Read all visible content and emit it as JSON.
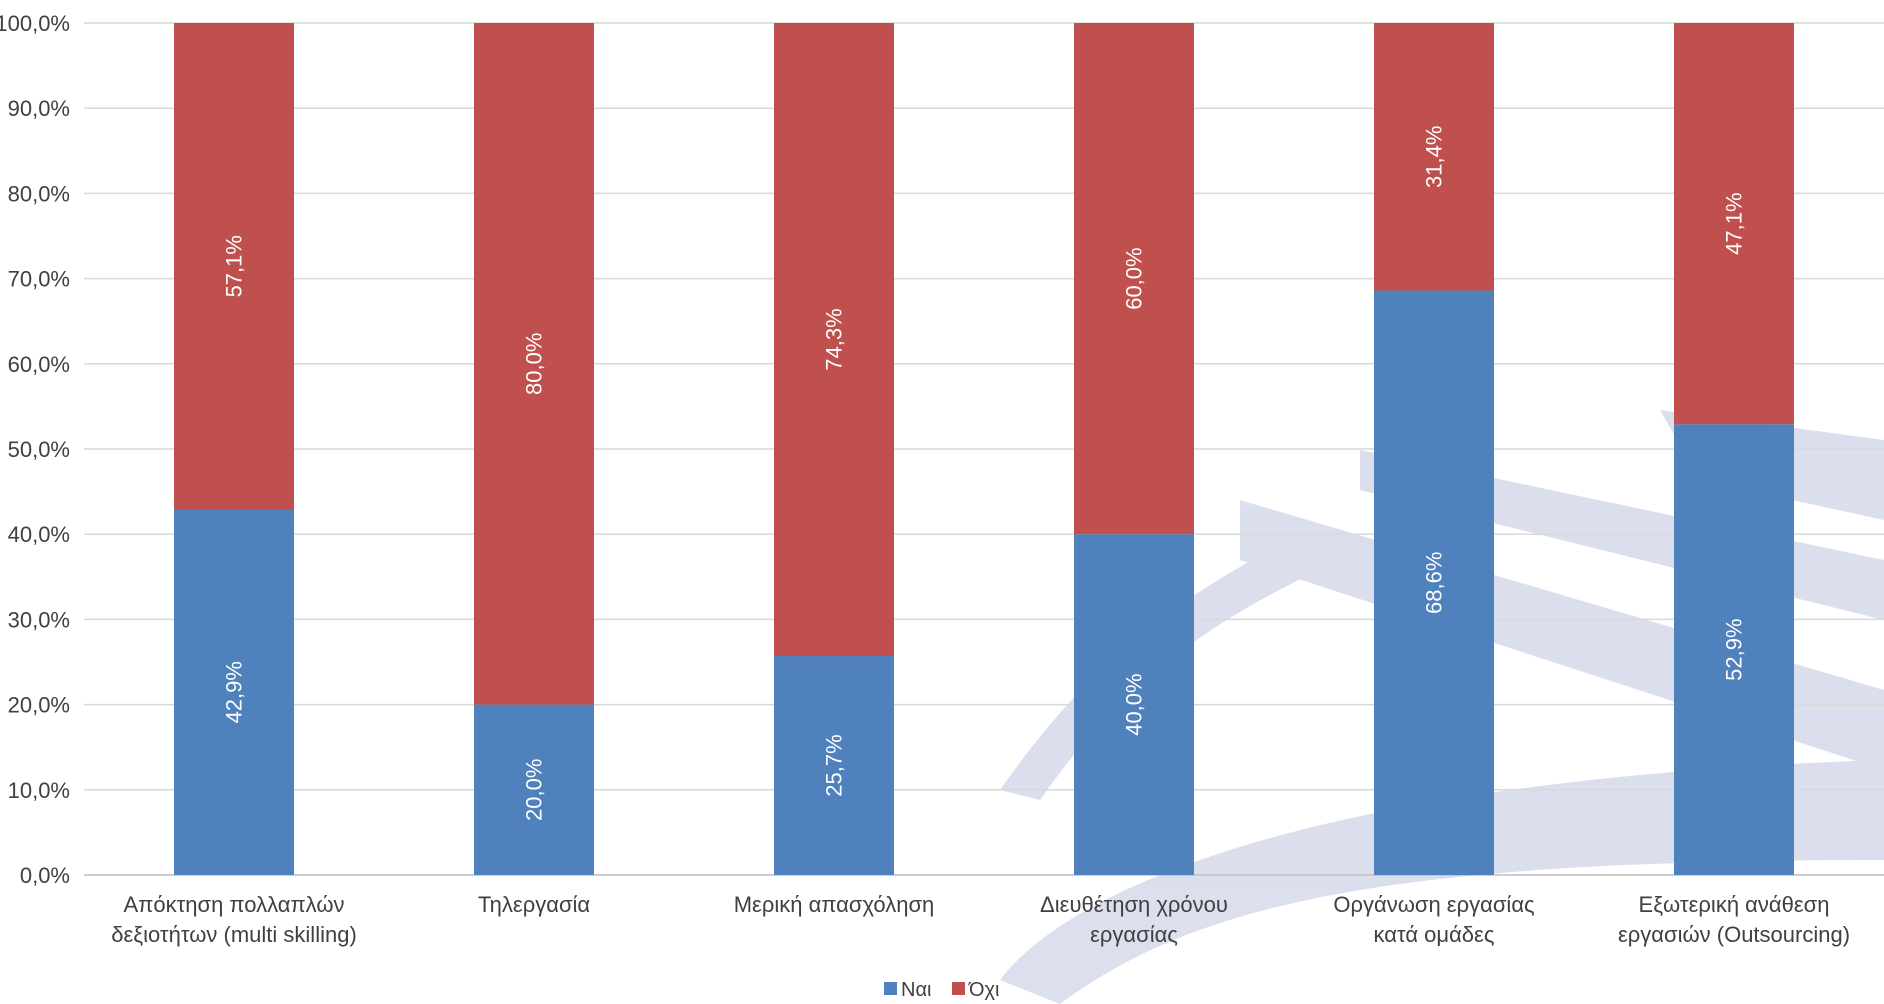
{
  "chart_data": {
    "type": "bar",
    "stacked": true,
    "categories": [
      [
        "Απόκτηση πολλαπλών",
        "δεξιοτήτων (multi skilling)"
      ],
      [
        "Τηλεργασία"
      ],
      [
        "Μερική απασχόληση"
      ],
      [
        "Διευθέτηση χρόνου",
        "εργασίας"
      ],
      [
        "Οργάνωση εργασίας",
        "κατά ομάδες"
      ],
      [
        "Εξωτερική ανάθεση",
        "εργασιών (Outsourcing)"
      ]
    ],
    "series": [
      {
        "name": "Ναι",
        "color": "#4F81BD",
        "values": [
          42.9,
          20.0,
          25.7,
          40.0,
          68.6,
          52.9
        ],
        "labels": [
          "42,9%",
          "20,0%",
          "25,7%",
          "40,0%",
          "68,6%",
          "52,9%"
        ]
      },
      {
        "name": "Όχι",
        "color": "#C0504D",
        "values": [
          57.1,
          80.0,
          74.3,
          60.0,
          31.4,
          47.1
        ],
        "labels": [
          "57,1%",
          "80,0%",
          "74,3%",
          "60,0%",
          "31,4%",
          "47,1%"
        ]
      }
    ],
    "ylim": [
      0,
      100
    ],
    "yticks": [
      "0,0%",
      "10,0%",
      "20,0%",
      "30,0%",
      "40,0%",
      "50,0%",
      "60,0%",
      "70,0%",
      "80,0%",
      "90,0%",
      "100,0%"
    ],
    "grid": true,
    "legend_position": "bottom",
    "data_labels": "rotated-inside"
  }
}
